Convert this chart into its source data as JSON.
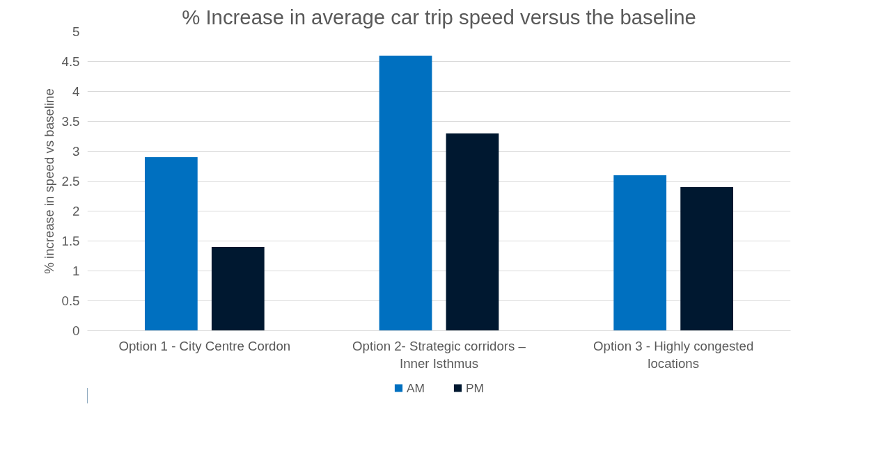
{
  "chart_data": {
    "type": "bar",
    "title": "% Increase in average car trip speed versus the baseline",
    "ylabel": "% increase in speed vs baseline",
    "categories": [
      "Option 1 - City Centre Cordon",
      "Option 2- Strategic corridors – Inner Isthmus",
      "Option 3 - Highly congested locations"
    ],
    "series": [
      {
        "name": "AM",
        "color": "#0070c0",
        "values": [
          2.9,
          4.6,
          2.6
        ]
      },
      {
        "name": "PM",
        "color": "#001830",
        "values": [
          1.4,
          3.3,
          2.4
        ]
      }
    ],
    "ylim": [
      0,
      5
    ],
    "yticks": [
      0,
      0.5,
      1,
      1.5,
      2,
      2.5,
      3,
      3.5,
      4,
      4.5,
      5
    ],
    "grid": "y",
    "legend": "bottom"
  }
}
